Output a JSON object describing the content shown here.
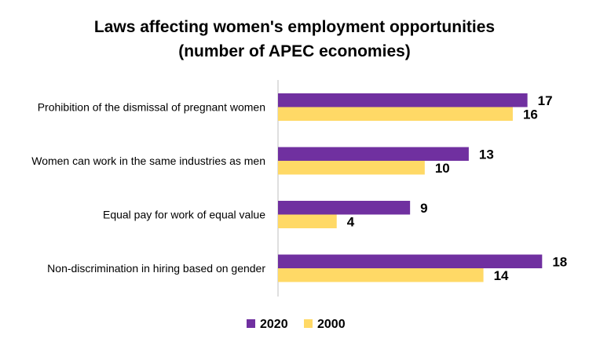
{
  "chart_data": {
    "type": "bar",
    "orientation": "horizontal",
    "title": "Laws affecting women's employment opportunities",
    "subtitle": "(number of APEC economies)",
    "categories": [
      "Prohibition of the dismissal of pregnant women",
      "Women can work in the same industries as men",
      "Equal pay for work of equal value",
      "Non-discrimination in hiring based on gender"
    ],
    "series": [
      {
        "name": "2020",
        "values": [
          17,
          13,
          9,
          18
        ],
        "color": "#7030A0"
      },
      {
        "name": "2000",
        "values": [
          16,
          10,
          4,
          14
        ],
        "color": "#FFD966"
      }
    ],
    "xlim": [
      0,
      19
    ],
    "grid": false,
    "legend_position": "bottom-center",
    "data_labels": true
  }
}
